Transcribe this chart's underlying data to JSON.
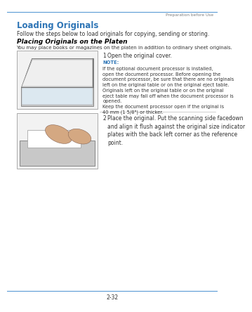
{
  "bg_color": "#ffffff",
  "header_line_color": "#5b9bd5",
  "header_text": "Preparation before Use",
  "header_text_color": "#808080",
  "title": "Loading Originals",
  "title_color": "#2e75b6",
  "title_fontsize": 8.5,
  "subtitle_text": "Follow the steps below to load originals for copying, sending or storing.",
  "subtitle_fontsize": 5.5,
  "subtitle_color": "#333333",
  "section_title": "Placing Originals on the Platen",
  "section_title_fontsize": 6.5,
  "section_title_color": "#000000",
  "section_desc": "You may place books or magazines on the platen in addition to ordinary sheet originals.",
  "section_desc_fontsize": 5.0,
  "section_desc_color": "#333333",
  "step1_num": "1",
  "step1_text": "Open the original cover.",
  "step1_fontsize": 5.5,
  "note_label": "NOTE",
  "note_label_color": "#2e75b6",
  "note_body": "If the optional document processor is installed,\nopen the document processor. Before opening the\ndocument processor, be sure that there are no originals\nleft on the original table or on the original eject table.\nOriginals left on the original table or on the original\neject table may fall off when the document processor is\nopened.\nKeep the document processor open if the original is\n40 mm (1 5/8\") or thicker.",
  "note_fontsize": 4.8,
  "note_color": "#333333",
  "step2_num": "2",
  "step2_body": "Place the original. Put the scanning side facedown\nand align it flush against the original size indicator\nplates with the back left corner as the reference\npoint.",
  "step_fontsize": 5.5,
  "footer_line_color": "#5b9bd5",
  "footer_text": "2-32",
  "footer_fontsize": 5.5,
  "footer_color": "#333333"
}
